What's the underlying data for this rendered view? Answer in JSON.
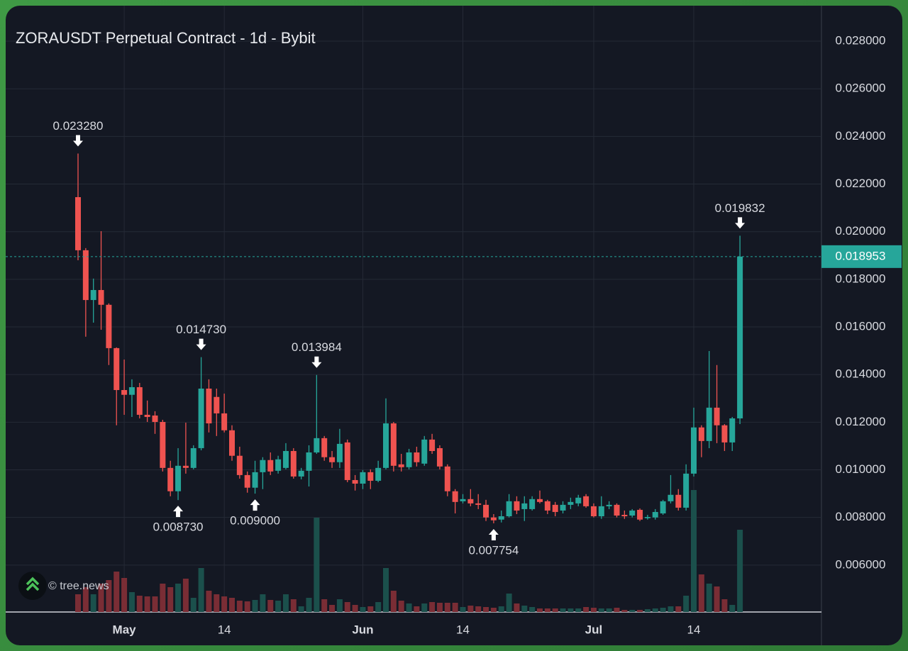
{
  "chart_data": {
    "type": "candlestick",
    "title": "ZORAUSDT Perpetual Contract - 1d - Bybit",
    "watermark": "© tree.news",
    "up_color": "#26a69a",
    "down_color": "#ef5350",
    "volume_up_color": "#1b504c",
    "volume_down_color": "#7a2d35",
    "grid": true,
    "categories": [
      null,
      null,
      null,
      null,
      null,
      null,
      "May",
      null,
      null,
      null,
      null,
      null,
      null,
      null,
      null,
      null,
      null,
      null,
      null,
      "14",
      null,
      null,
      null,
      null,
      null,
      null,
      null,
      null,
      null,
      null,
      null,
      null,
      null,
      null,
      null,
      null,
      null,
      "Jun",
      null,
      null,
      null,
      null,
      null,
      null,
      null,
      null,
      null,
      null,
      null,
      null,
      "14",
      null,
      null,
      null,
      null,
      null,
      null,
      null,
      null,
      null,
      null,
      null,
      null,
      null,
      null,
      null,
      null,
      "Jul",
      null,
      null,
      null,
      null,
      null,
      null,
      null,
      null,
      null,
      null,
      null,
      null,
      "14",
      null,
      null,
      null,
      null,
      null,
      null
    ],
    "open": [
      0.02145,
      0.01922,
      0.01713,
      0.01755,
      0.01693,
      0.01511,
      0.01335,
      0.01315,
      0.01347,
      0.01231,
      0.01228,
      0.01201,
      0.01008,
      0.0091,
      0.01017,
      0.01008,
      0.01091,
      0.01341,
      0.01306,
      0.01237,
      0.01166,
      0.01059,
      0.00978,
      0.00925,
      0.0099,
      0.01041,
      0.00996,
      0.01008,
      0.01079,
      0.00972,
      0.00996,
      0.01073,
      0.01133,
      0.01053,
      0.01032,
      0.01115,
      0.00957,
      0.00942,
      0.0099,
      0.00954,
      0.01008,
      0.01195,
      0.01023,
      0.01011,
      0.01073,
      0.01026,
      0.01127,
      0.01091,
      0.01014,
      0.0091,
      0.00868,
      0.00877,
      0.00859,
      0.00853,
      0.008,
      0.00791,
      0.00805,
      0.00868,
      0.00835,
      0.00835,
      0.00877,
      0.00868,
      0.00853,
      0.00829,
      0.00853,
      0.00859,
      0.00889,
      0.00847,
      0.00805,
      0.00847,
      0.00853,
      0.00811,
      0.00808,
      0.00832,
      0.00797,
      0.008,
      0.00817,
      0.00868,
      0.00895,
      0.00841,
      0.00984,
      0.01178,
      0.01121,
      0.01261,
      0.01187,
      0.01115,
      0.01216
    ],
    "high": [
      0.02328,
      0.01931,
      0.01803,
      0.02002,
      0.01699,
      0.01514,
      0.01463,
      0.0138,
      0.01365,
      0.01291,
      0.01246,
      0.0121,
      0.01038,
      0.01091,
      0.01198,
      0.01103,
      0.01473,
      0.0138,
      0.01341,
      0.0132,
      0.01187,
      0.01097,
      0.00993,
      0.01038,
      0.01053,
      0.01073,
      0.01059,
      0.01112,
      0.01091,
      0.01008,
      0.01103,
      0.013984,
      0.01142,
      0.01079,
      0.01172,
      0.01127,
      0.00978,
      0.00999,
      0.01002,
      0.01038,
      0.013,
      0.01201,
      0.01067,
      0.01088,
      0.01097,
      0.01142,
      0.01151,
      0.01103,
      0.01023,
      0.00919,
      0.00898,
      0.00919,
      0.00898,
      0.00874,
      0.00814,
      0.00829,
      0.00898,
      0.00889,
      0.00889,
      0.00889,
      0.00913,
      0.00874,
      0.00865,
      0.00868,
      0.00883,
      0.00895,
      0.00898,
      0.00859,
      0.00889,
      0.00868,
      0.00859,
      0.00829,
      0.00835,
      0.00838,
      0.00811,
      0.00835,
      0.00874,
      0.00978,
      0.00919,
      0.01023,
      0.01261,
      0.01187,
      0.01499,
      0.0144,
      0.01192,
      0.01222,
      0.019832
    ],
    "low": [
      0.0188,
      0.01559,
      0.01618,
      0.01588,
      0.0144,
      0.01187,
      0.01231,
      0.01222,
      0.01216,
      0.01201,
      0.01151,
      0.00993,
      0.00889,
      0.00873,
      0.00984,
      0.01002,
      0.01082,
      0.01157,
      0.01142,
      0.01157,
      0.01038,
      0.00963,
      0.00904,
      0.009,
      0.00919,
      0.00978,
      0.00984,
      0.01002,
      0.00963,
      0.0096,
      0.0093,
      0.01067,
      0.01038,
      0.01008,
      0.01008,
      0.00948,
      0.00913,
      0.00919,
      0.00919,
      0.00948,
      0.01002,
      0.00993,
      0.00993,
      0.01002,
      0.01014,
      0.01017,
      0.01067,
      0.01002,
      0.00889,
      0.00817,
      0.00859,
      0.00847,
      0.00835,
      0.00785,
      0.007754,
      0.00779,
      0.008,
      0.00814,
      0.00785,
      0.00829,
      0.00859,
      0.00814,
      0.00805,
      0.00817,
      0.00835,
      0.00847,
      0.00841,
      0.008,
      0.00794,
      0.00835,
      0.008,
      0.00794,
      0.008,
      0.00785,
      0.00791,
      0.00791,
      0.00811,
      0.00859,
      0.00829,
      0.00829,
      0.00972,
      0.01053,
      0.01091,
      0.01112,
      0.01079,
      0.01079,
      0.01192
    ],
    "close": [
      0.01922,
      0.01713,
      0.01755,
      0.01693,
      0.01511,
      0.01335,
      0.01315,
      0.01347,
      0.01231,
      0.01222,
      0.01201,
      0.01008,
      0.0091,
      0.01017,
      0.01008,
      0.01091,
      0.01341,
      0.01195,
      0.01237,
      0.01166,
      0.01059,
      0.00978,
      0.00925,
      0.0099,
      0.01041,
      0.00993,
      0.01044,
      0.01079,
      0.00972,
      0.00996,
      0.01073,
      0.01133,
      0.01053,
      0.01032,
      0.01109,
      0.00957,
      0.00942,
      0.0099,
      0.00954,
      0.01008,
      0.01195,
      0.01017,
      0.01011,
      0.01073,
      0.01032,
      0.01127,
      0.01079,
      0.01014,
      0.0091,
      0.00865,
      0.00877,
      0.00859,
      0.00853,
      0.008,
      0.00788,
      0.00805,
      0.00868,
      0.00829,
      0.00859,
      0.00877,
      0.00865,
      0.00829,
      0.00823,
      0.00853,
      0.00865,
      0.00883,
      0.00847,
      0.00805,
      0.00847,
      0.00853,
      0.00808,
      0.00805,
      0.00829,
      0.00791,
      0.00802,
      0.00823,
      0.00868,
      0.00895,
      0.00841,
      0.00984,
      0.01178,
      0.01121,
      0.01261,
      0.01187,
      0.01115,
      0.01216,
      0.018953
    ],
    "volume": [
      25,
      35,
      25,
      40,
      45,
      57,
      48,
      28,
      23,
      22,
      22,
      40,
      35,
      40,
      47,
      20,
      62,
      30,
      25,
      22,
      20,
      16,
      15,
      17,
      25,
      17,
      16,
      25,
      18,
      8,
      20,
      133,
      18,
      10,
      18,
      14,
      10,
      7,
      8,
      14,
      62,
      30,
      16,
      12,
      8,
      12,
      14,
      13,
      13,
      13,
      7,
      9,
      8,
      7,
      6,
      8,
      26,
      12,
      9,
      7,
      5,
      5,
      5,
      5,
      5,
      5,
      7,
      6,
      5,
      5,
      6,
      3,
      3,
      3,
      4,
      5,
      6,
      8,
      8,
      23,
      172,
      53,
      40,
      36,
      18,
      10,
      116
    ],
    "annotations": [
      "0.023280",
      "0.014730",
      "0.013984",
      "0.019832",
      "0.008730",
      "0.009000",
      "0.007754"
    ],
    "last_price_label": "0.018953",
    "ylim": [
      0.00403,
      0.02949
    ],
    "yticks": [
      {
        "value": 0.006,
        "label": "0.006000"
      },
      {
        "value": 0.008,
        "label": "0.008000"
      },
      {
        "value": 0.01,
        "label": "0.010000"
      },
      {
        "value": 0.012,
        "label": "0.012000"
      },
      {
        "value": 0.014,
        "label": "0.014000"
      },
      {
        "value": 0.016,
        "label": "0.016000"
      },
      {
        "value": 0.018,
        "label": "0.018000"
      },
      {
        "value": 0.02,
        "label": "0.020000"
      },
      {
        "value": 0.022,
        "label": "0.022000"
      },
      {
        "value": 0.024,
        "label": "0.024000"
      },
      {
        "value": 0.026,
        "label": "0.026000"
      },
      {
        "value": 0.028,
        "label": "0.028000"
      }
    ]
  }
}
